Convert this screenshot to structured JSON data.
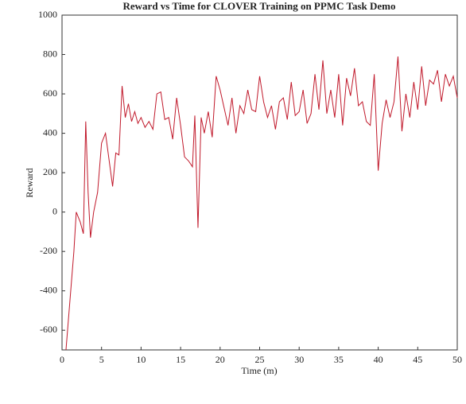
{
  "chart_data": {
    "type": "line",
    "title": "Reward vs Time for CLOVER Training on PPMC Task Demo",
    "x_label": "Time (m)",
    "y_label": "Reward",
    "color": "#c0182a",
    "x": [
      0.5,
      1,
      1.5,
      1.8,
      2.3,
      2.7,
      3.0,
      3.3,
      3.6,
      4.0,
      4.5,
      5.0,
      5.5,
      6.0,
      6.4,
      6.8,
      7.2,
      7.6,
      8.0,
      8.4,
      8.8,
      9.2,
      9.6,
      10,
      10.5,
      11,
      11.5,
      12,
      12.5,
      13,
      13.5,
      14,
      14.5,
      15,
      15.5,
      16,
      16.5,
      16.8,
      17.2,
      17.6,
      18,
      18.5,
      19,
      19.5,
      20,
      20.5,
      21,
      21.5,
      22,
      22.5,
      23,
      23.5,
      24,
      24.5,
      25,
      25.5,
      26,
      26.5,
      27,
      27.5,
      28,
      28.5,
      29,
      29.5,
      30,
      30.5,
      31,
      31.5,
      32,
      32.5,
      33,
      33.5,
      34,
      34.5,
      35,
      35.5,
      36,
      36.5,
      37,
      37.5,
      38,
      38.5,
      39,
      39.5,
      40,
      40.5,
      41,
      41.5,
      42,
      42.5,
      43,
      43.5,
      44,
      44.5,
      45,
      45.5,
      46,
      46.5,
      47,
      47.5,
      48,
      48.5,
      49,
      49.5,
      50
    ],
    "values": [
      -700,
      -450,
      -200,
      0,
      -50,
      -110,
      460,
      100,
      -130,
      0,
      100,
      350,
      400,
      250,
      130,
      300,
      290,
      640,
      480,
      550,
      460,
      510,
      450,
      480,
      430,
      460,
      420,
      600,
      610,
      470,
      480,
      370,
      580,
      440,
      280,
      260,
      230,
      490,
      -80,
      480,
      400,
      510,
      380,
      690,
      620,
      530,
      440,
      580,
      400,
      540,
      500,
      620,
      520,
      510,
      690,
      560,
      480,
      540,
      420,
      560,
      580,
      470,
      660,
      490,
      510,
      620,
      450,
      500,
      700,
      520,
      770,
      500,
      620,
      480,
      700,
      440,
      680,
      590,
      730,
      540,
      560,
      460,
      440,
      700,
      210,
      450,
      570,
      480,
      560,
      790,
      410,
      600,
      480,
      660,
      520,
      740,
      540,
      670,
      650,
      720,
      560,
      700,
      640,
      690,
      580
    ],
    "xlim": [
      0,
      50
    ],
    "xticks": [
      0,
      5,
      10,
      15,
      20,
      25,
      30,
      35,
      40,
      45,
      50
    ],
    "ylim": [
      -700,
      1000
    ],
    "yticks": [
      -600,
      -400,
      -200,
      0,
      200,
      400,
      600,
      800,
      1000
    ]
  }
}
